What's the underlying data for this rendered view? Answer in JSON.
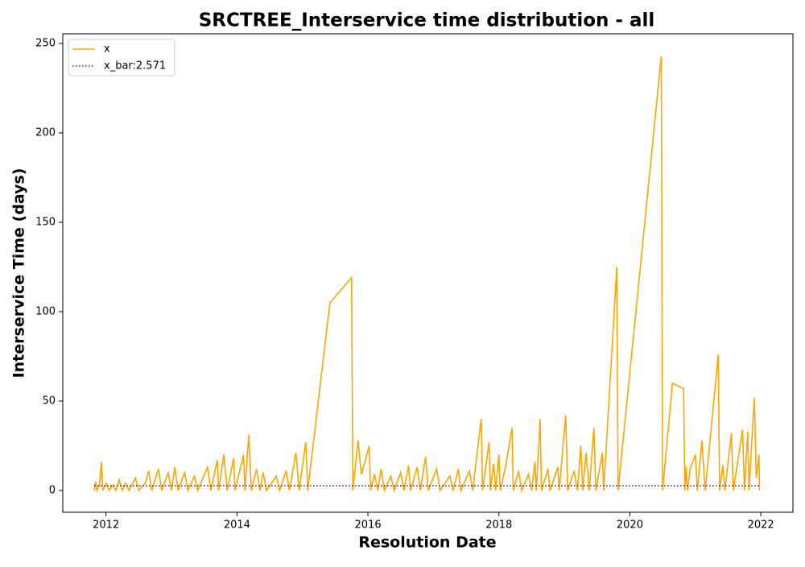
{
  "chart_data": {
    "type": "line",
    "title": "SRCTREE_Interservice time distribution - all",
    "x_label": "Resolution Date",
    "y_label": "Interservice Time (days)",
    "xlim": [
      2011.34,
      2022.49
    ],
    "xticks": [
      2012,
      2014,
      2016,
      2018,
      2020,
      2022
    ],
    "ylim": [
      -12.2,
      255.4
    ],
    "yticks": [
      0,
      50,
      100,
      150,
      200,
      250
    ],
    "legend": "upper left",
    "grid": false,
    "series": [
      {
        "name": "x",
        "color": "#ffa500",
        "style": "solid",
        "x": [
          2011.82,
          2011.84,
          2011.86,
          2011.9,
          2011.93,
          2011.95,
          2012.0,
          2012.05,
          2012.1,
          2012.15,
          2012.2,
          2012.25,
          2012.3,
          2012.35,
          2012.45,
          2012.5,
          2012.6,
          2012.65,
          2012.7,
          2012.8,
          2012.85,
          2012.95,
          2013.0,
          2013.05,
          2013.1,
          2013.2,
          2013.25,
          2013.35,
          2013.4,
          2013.55,
          2013.6,
          2013.7,
          2013.72,
          2013.8,
          2013.85,
          2013.95,
          2013.97,
          2014.1,
          2014.12,
          2014.18,
          2014.22,
          2014.3,
          2014.35,
          2014.4,
          2014.45,
          2014.6,
          2014.65,
          2014.75,
          2014.8,
          2014.9,
          2014.95,
          2015.05,
          2015.08,
          2015.42,
          2015.75,
          2015.77,
          2015.85,
          2015.9,
          2016.02,
          2016.04,
          2016.1,
          2016.15,
          2016.2,
          2016.25,
          2016.35,
          2016.4,
          2016.5,
          2016.55,
          2016.62,
          2016.65,
          2016.75,
          2016.8,
          2016.88,
          2016.92,
          2017.05,
          2017.1,
          2017.25,
          2017.3,
          2017.38,
          2017.42,
          2017.55,
          2017.6,
          2017.73,
          2017.75,
          2017.85,
          2017.87,
          2017.92,
          2017.95,
          2018.0,
          2018.02,
          2018.1,
          2018.2,
          2018.22,
          2018.3,
          2018.35,
          2018.45,
          2018.5,
          2018.55,
          2018.57,
          2018.63,
          2018.65,
          2018.75,
          2018.78,
          2018.9,
          2018.92,
          2019.02,
          2019.05,
          2019.15,
          2019.2,
          2019.25,
          2019.28,
          2019.33,
          2019.38,
          2019.45,
          2019.48,
          2019.58,
          2019.6,
          2019.8,
          2019.82,
          2020.48,
          2020.5,
          2020.65,
          2020.82,
          2020.84,
          2020.86,
          2020.88,
          2020.92,
          2021.0,
          2021.03,
          2021.1,
          2021.15,
          2021.35,
          2021.37,
          2021.42,
          2021.45,
          2021.55,
          2021.58,
          2021.72,
          2021.75,
          2021.8,
          2021.82,
          2021.9,
          2021.93,
          2021.97,
          2021.98
        ],
        "values": [
          0,
          5,
          0,
          3,
          16,
          0,
          4,
          0,
          3,
          0,
          6,
          0,
          4,
          0,
          7,
          0,
          4,
          11,
          0,
          12,
          0,
          10,
          0,
          13,
          0,
          10,
          0,
          8,
          0,
          13,
          0,
          17,
          0,
          20,
          0,
          18,
          0,
          20,
          0,
          31,
          0,
          12,
          0,
          10,
          0,
          8,
          0,
          11,
          0,
          21,
          0,
          27,
          0,
          105,
          119,
          0,
          28,
          9,
          25,
          0,
          9,
          0,
          12,
          0,
          8,
          0,
          10,
          0,
          14,
          0,
          13,
          0,
          19,
          0,
          12,
          0,
          8,
          0,
          12,
          0,
          11,
          0,
          40,
          0,
          27,
          0,
          15,
          0,
          20,
          0,
          13,
          35,
          0,
          11,
          0,
          9,
          0,
          16,
          0,
          40,
          0,
          12,
          0,
          13,
          0,
          42,
          0,
          11,
          0,
          25,
          0,
          21,
          0,
          35,
          0,
          21,
          0,
          125,
          0,
          243,
          0,
          60,
          57,
          0,
          13,
          0,
          12,
          20,
          0,
          28,
          0,
          76,
          0,
          14,
          0,
          32,
          0,
          34,
          0,
          33,
          0,
          52,
          7,
          20,
          0
        ]
      },
      {
        "name": "x_bar:2.571",
        "color": "#800080",
        "style": "dotted",
        "x": [
          2011.82,
          2021.98
        ],
        "values": [
          2.571,
          2.571
        ]
      }
    ]
  }
}
